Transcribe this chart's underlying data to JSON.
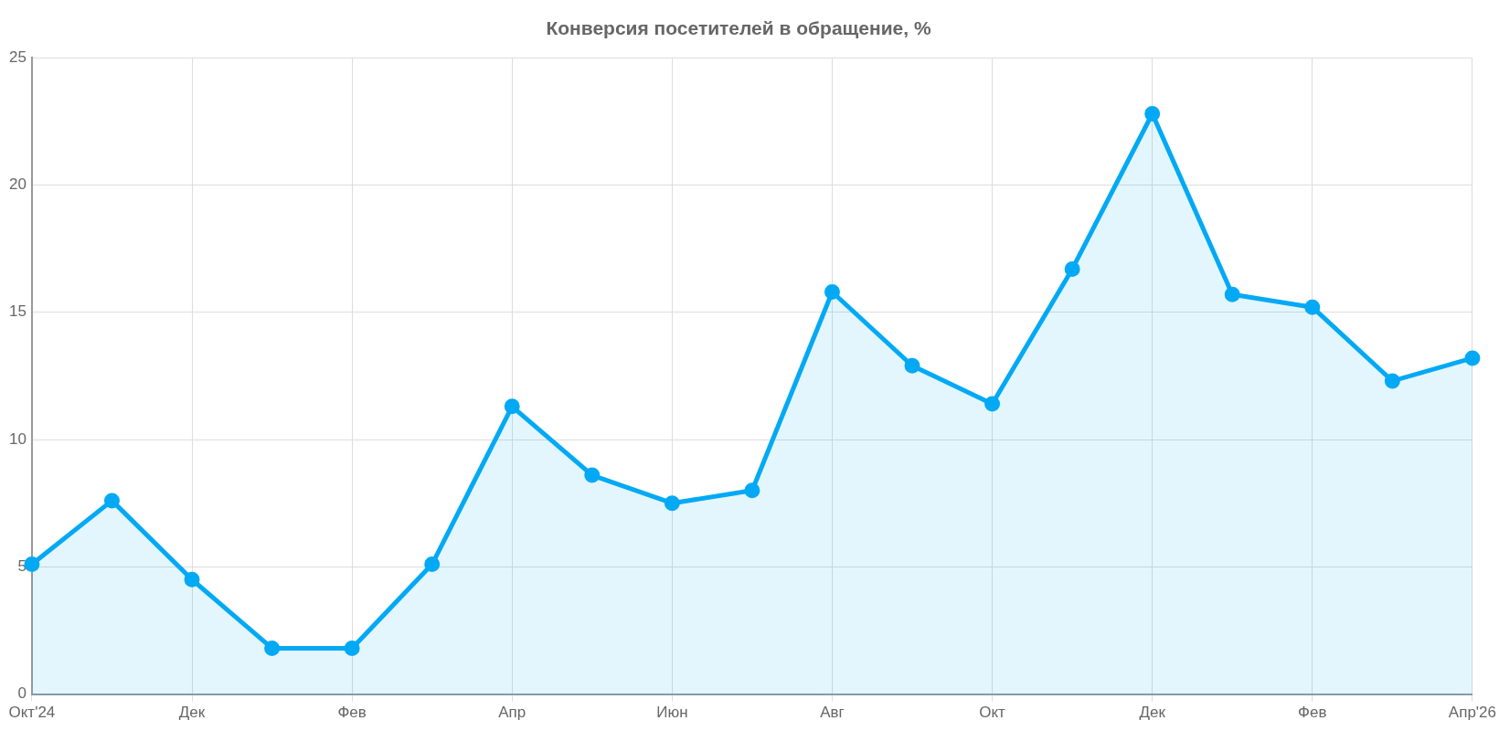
{
  "chart_data": {
    "type": "area",
    "title": "Конверсия посетителей в обращение, %",
    "categories": [
      "Окт'24",
      null,
      "Дек",
      null,
      "Фев",
      null,
      "Апр",
      null,
      "Июн",
      null,
      "Авг",
      null,
      "Окт",
      null,
      "Дек",
      null,
      "Фев",
      null,
      "Апр'26"
    ],
    "series": [
      {
        "color": "#03a9f4",
        "values": [
          5.1,
          7.6,
          4.5,
          1.8,
          1.8,
          5.1,
          11.3,
          8.6,
          7.5,
          8.0,
          15.8,
          12.9,
          11.4,
          16.7,
          22.8,
          15.7,
          15.2,
          12.3,
          13.2
        ]
      }
    ],
    "ylim": [
      0,
      25
    ],
    "yticks": [
      0,
      5,
      10,
      15,
      20,
      25
    ],
    "grid": true,
    "legend": false,
    "marker": "circle",
    "line_style": "solid"
  }
}
